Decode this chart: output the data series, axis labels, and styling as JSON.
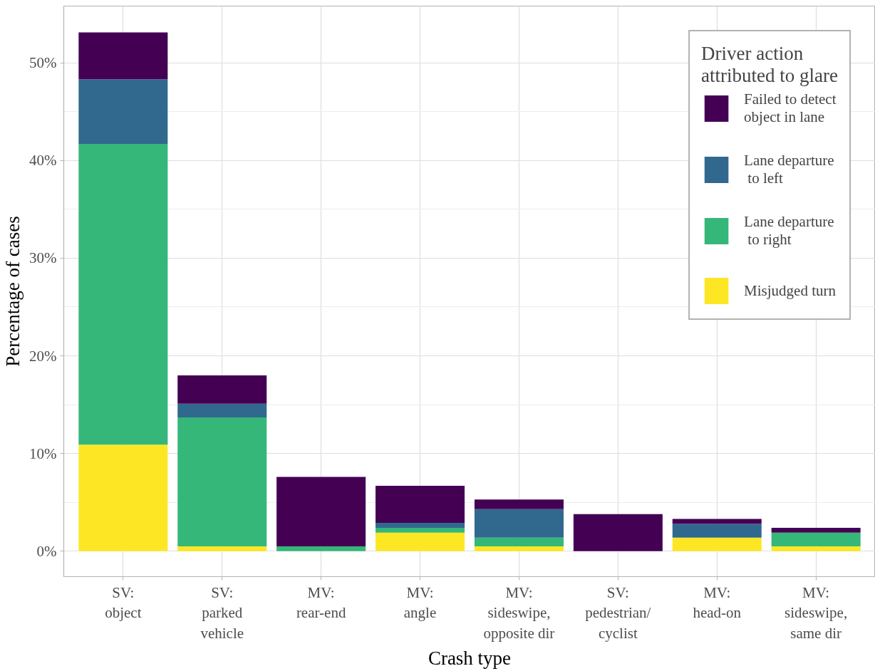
{
  "chart_data": {
    "type": "bar",
    "stacked": true,
    "xlabel": "Crash type",
    "ylabel": "Percentage of cases",
    "legend_title": "Driver action\nattributed to glare",
    "categories": [
      "SV:\nobject",
      "SV:\nparked\nvehicle",
      "MV:\nrear-end",
      "MV:\nangle",
      "MV:\nsideswipe,\nopposite dir",
      "SV:\npedestrian/\ncyclist",
      "MV:\nhead-on",
      "MV:\nsideswipe,\nsame dir"
    ],
    "series": [
      {
        "name": "Misjudged turn",
        "color": "#fde725",
        "values": [
          10.9,
          0.5,
          0,
          1.9,
          0.5,
          0,
          1.4,
          0.5
        ]
      },
      {
        "name": "Lane departure\n to right",
        "color": "#35b779",
        "values": [
          30.8,
          13.2,
          0.5,
          0.5,
          0.9,
          0,
          0,
          1.4
        ]
      },
      {
        "name": "Lane departure\n to left",
        "color": "#31688e",
        "values": [
          6.6,
          1.4,
          0,
          0.5,
          2.9,
          0,
          1.4,
          0
        ]
      },
      {
        "name": "Failed to detect\nobject in lane",
        "color": "#440154",
        "values": [
          4.8,
          2.9,
          7.1,
          3.8,
          1.0,
          3.8,
          0.5,
          0.5
        ]
      }
    ],
    "ylim": [
      -2.6,
      55.8
    ],
    "yticks": [
      {
        "value": 0,
        "label": "0%"
      },
      {
        "value": 10,
        "label": "10%"
      },
      {
        "value": 20,
        "label": "20%"
      },
      {
        "value": 30,
        "label": "30%"
      },
      {
        "value": 40,
        "label": "40%"
      },
      {
        "value": 50,
        "label": "50%"
      }
    ],
    "grid": true,
    "legend": "top right"
  }
}
